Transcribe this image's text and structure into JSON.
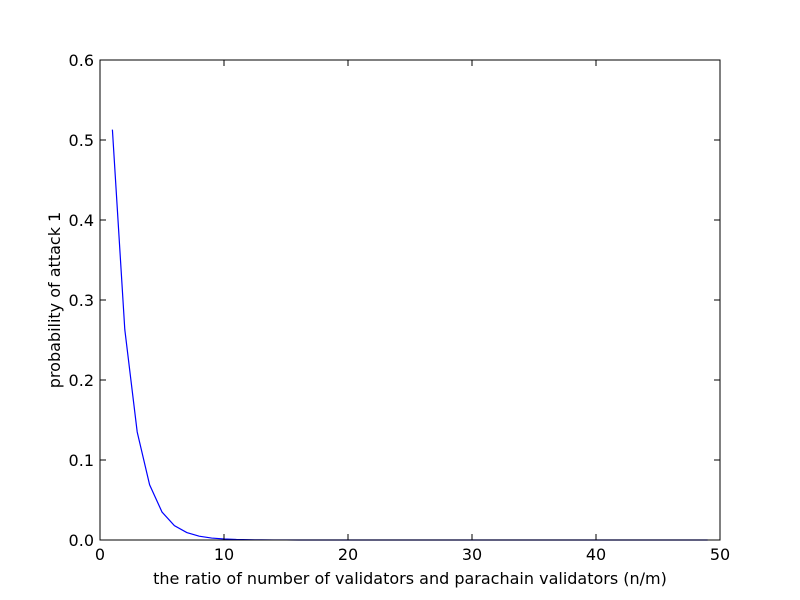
{
  "chart_data": {
    "type": "line",
    "title": "",
    "xlabel": "the ratio of number of validators and parachain validators (n/m)",
    "ylabel": "probability of attack 1",
    "xlim": [
      0,
      50
    ],
    "ylim": [
      0,
      0.6
    ],
    "xticks": [
      0,
      10,
      20,
      30,
      40,
      50
    ],
    "yticks": [
      0.0,
      0.1,
      0.2,
      0.3,
      0.4,
      0.5,
      0.6
    ],
    "xtick_labels": [
      "0",
      "10",
      "20",
      "30",
      "40",
      "50"
    ],
    "ytick_labels": [
      "0.0",
      "0.1",
      "0.2",
      "0.3",
      "0.4",
      "0.5",
      "0.6"
    ],
    "grid": false,
    "line_color": "#0000ff",
    "series": [
      {
        "x": [
          1,
          2,
          3,
          4,
          5,
          6,
          7,
          8,
          9,
          10,
          11,
          12,
          13,
          14,
          15,
          16,
          17,
          18,
          19,
          20,
          21,
          22,
          23,
          24,
          25,
          26,
          27,
          28,
          29,
          30,
          31,
          32,
          33,
          34,
          35,
          36,
          37,
          38,
          39,
          40,
          41,
          42,
          43,
          44,
          45,
          46,
          47,
          48,
          49
        ],
        "y": [
          0.513,
          0.263,
          0.135,
          0.069,
          0.035,
          0.018,
          0.0093,
          0.0048,
          0.0024,
          0.0013,
          0.00064,
          0.00033,
          0.00017,
          8.7e-05,
          4.5e-05,
          2.3e-05,
          1.2e-05,
          6e-06,
          3.1e-06,
          1.6e-06,
          8e-07,
          4e-07,
          2e-07,
          1e-07,
          1e-07,
          0,
          0,
          0,
          0,
          0,
          0,
          0,
          0,
          0,
          0,
          0,
          0,
          0,
          0,
          0,
          0,
          0,
          0,
          0,
          0,
          0,
          0,
          0,
          0
        ]
      }
    ]
  }
}
